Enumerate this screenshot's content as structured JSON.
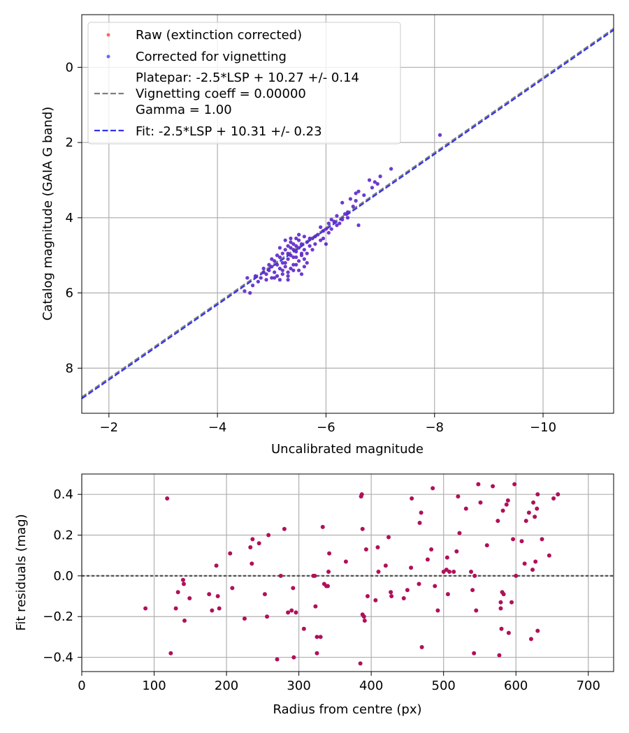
{
  "figure": {
    "top_plot": {
      "type": "scatter",
      "xlabel": "Uncalibrated magnitude",
      "ylabel": "Catalog magnitude (GAIA G band)",
      "xlim": [
        -1.5,
        -11.3
      ],
      "ylim": [
        9.2,
        -1.4
      ],
      "x_ticks": [
        -2,
        -4,
        -6,
        -8,
        -10
      ],
      "x_tick_labels": [
        "−2",
        "−4",
        "−6",
        "−8",
        "−10"
      ],
      "y_ticks": [
        0,
        2,
        4,
        6,
        8
      ],
      "y_tick_labels": [
        "0",
        "2",
        "4",
        "6",
        "8"
      ],
      "grid": true,
      "legend": {
        "position": "top-left",
        "entries": {
          "raw": "Raw (extinction corrected)",
          "corrected": "Corrected for vignetting",
          "platepar_line1": "Platepar: -2.5*LSP + 10.27 +/- 0.14",
          "platepar_line2": "Vignetting coeff = 0.00000",
          "platepar_line3": "Gamma = 1.00",
          "fit": "Fit: -2.5*LSP + 10.31 +/- 0.23"
        }
      },
      "series": [
        {
          "name": "Platepar",
          "kind": "dashed-line",
          "slope": 1.0,
          "intercept": 10.27,
          "color": "#7f7f7f"
        },
        {
          "name": "Fit",
          "kind": "dashed-line",
          "slope": 1.0,
          "intercept": 10.31,
          "color": "#3333ee"
        },
        {
          "name": "Raw (extinction corrected)",
          "kind": "points",
          "color": "#ff2a2a"
        },
        {
          "name": "Corrected for vignetting",
          "kind": "points",
          "color": "#2a2aff"
        }
      ],
      "points": [
        [
          -8.1,
          1.8
        ],
        [
          -7.2,
          2.7
        ],
        [
          -7.0,
          2.9
        ],
        [
          -6.95,
          3.1
        ],
        [
          -6.9,
          3.05
        ],
        [
          -6.8,
          3.0
        ],
        [
          -6.85,
          3.2
        ],
        [
          -6.6,
          3.3
        ],
        [
          -6.55,
          3.55
        ],
        [
          -6.45,
          3.5
        ],
        [
          -6.5,
          3.7
        ],
        [
          -6.3,
          3.6
        ],
        [
          -6.4,
          3.85
        ],
        [
          -6.35,
          3.9
        ],
        [
          -6.2,
          3.95
        ],
        [
          -6.3,
          4.05
        ],
        [
          -6.1,
          4.05
        ],
        [
          -6.15,
          4.1
        ],
        [
          -6.05,
          4.15
        ],
        [
          -6.2,
          4.2
        ],
        [
          -6.6,
          4.2
        ],
        [
          -5.9,
          4.25
        ],
        [
          -6.0,
          4.3
        ],
        [
          -5.95,
          4.35
        ],
        [
          -6.05,
          4.4
        ],
        [
          -5.85,
          4.45
        ],
        [
          -5.8,
          4.5
        ],
        [
          -5.75,
          4.55
        ],
        [
          -5.7,
          4.55
        ],
        [
          -5.9,
          4.6
        ],
        [
          -5.6,
          4.5
        ],
        [
          -5.5,
          4.45
        ],
        [
          -5.45,
          4.55
        ],
        [
          -5.65,
          4.65
        ],
        [
          -5.55,
          4.7
        ],
        [
          -5.4,
          4.7
        ],
        [
          -5.35,
          4.65
        ],
        [
          -5.3,
          4.75
        ],
        [
          -5.5,
          4.8
        ],
        [
          -5.6,
          4.85
        ],
        [
          -5.45,
          4.9
        ],
        [
          -5.25,
          4.85
        ],
        [
          -5.2,
          4.95
        ],
        [
          -5.35,
          5.0
        ],
        [
          -5.55,
          5.0
        ],
        [
          -5.4,
          5.05
        ],
        [
          -5.15,
          5.05
        ],
        [
          -5.3,
          5.1
        ],
        [
          -5.5,
          5.15
        ],
        [
          -5.05,
          5.15
        ],
        [
          -5.2,
          5.2
        ],
        [
          -5.4,
          5.25
        ],
        [
          -5.1,
          5.25
        ],
        [
          -5.25,
          5.3
        ],
        [
          -5.0,
          5.3
        ],
        [
          -5.35,
          5.35
        ],
        [
          -5.15,
          5.35
        ],
        [
          -4.95,
          5.4
        ],
        [
          -5.3,
          5.45
        ],
        [
          -5.05,
          5.45
        ],
        [
          -5.2,
          5.5
        ],
        [
          -4.9,
          5.5
        ],
        [
          -5.1,
          5.55
        ],
        [
          -5.3,
          5.55
        ],
        [
          -5.0,
          5.6
        ],
        [
          -4.85,
          5.45
        ],
        [
          -4.8,
          5.6
        ],
        [
          -5.15,
          5.65
        ],
        [
          -4.75,
          5.7
        ],
        [
          -4.7,
          5.55
        ],
        [
          -4.65,
          5.8
        ],
        [
          -4.55,
          5.6
        ],
        [
          -4.5,
          5.95
        ],
        [
          -4.6,
          6.0
        ],
        [
          -4.85,
          5.35
        ],
        [
          -5.45,
          5.25
        ],
        [
          -5.6,
          5.1
        ],
        [
          -5.65,
          4.95
        ],
        [
          -5.5,
          4.6
        ],
        [
          -5.35,
          4.55
        ],
        [
          -5.25,
          4.6
        ],
        [
          -5.45,
          4.75
        ],
        [
          -5.7,
          4.75
        ],
        [
          -5.55,
          4.95
        ],
        [
          -5.3,
          4.95
        ],
        [
          -5.1,
          5.0
        ],
        [
          -5.0,
          5.1
        ],
        [
          -5.2,
          5.4
        ],
        [
          -5.4,
          5.4
        ],
        [
          -5.05,
          5.6
        ],
        [
          -4.95,
          5.25
        ],
        [
          -5.6,
          5.3
        ],
        [
          -5.55,
          5.5
        ],
        [
          -5.75,
          4.85
        ],
        [
          -5.8,
          4.7
        ],
        [
          -5.95,
          4.55
        ],
        [
          -6.0,
          4.7
        ],
        [
          -6.1,
          4.3
        ],
        [
          -6.25,
          4.15
        ],
        [
          -6.4,
          4.0
        ],
        [
          -6.7,
          3.4
        ],
        [
          -6.55,
          3.35
        ],
        [
          -5.4,
          4.85
        ],
        [
          -5.25,
          5.2
        ],
        [
          -5.15,
          4.8
        ],
        [
          -5.5,
          5.4
        ],
        [
          -5.65,
          5.2
        ],
        [
          -4.9,
          5.65
        ],
        [
          -5.3,
          5.65
        ],
        [
          -5.45,
          5.05
        ],
        [
          -5.35,
          4.8
        ]
      ]
    },
    "bottom_plot": {
      "type": "scatter",
      "xlabel": "Radius from centre (px)",
      "ylabel": "Fit residuals (mag)",
      "xlim": [
        0,
        735
      ],
      "ylim": [
        -0.47,
        0.5
      ],
      "x_ticks": [
        0,
        100,
        200,
        300,
        400,
        500,
        600,
        700
      ],
      "x_tick_labels": [
        "0",
        "100",
        "200",
        "300",
        "400",
        "500",
        "600",
        "700"
      ],
      "y_ticks": [
        0.4,
        0.2,
        0.0,
        -0.2,
        -0.4
      ],
      "y_tick_labels": [
        "0.4",
        "0.2",
        "0.0",
        "−0.2",
        "−0.4"
      ],
      "grid": true,
      "reference_line": {
        "y": 0.0,
        "style": "dotted",
        "color": "#444444"
      },
      "point_color": "#b0105a",
      "points": [
        [
          88,
          -0.16
        ],
        [
          118,
          0.38
        ],
        [
          123,
          -0.38
        ],
        [
          130,
          -0.16
        ],
        [
          133,
          -0.08
        ],
        [
          140,
          -0.02
        ],
        [
          141,
          -0.04
        ],
        [
          142,
          -0.22
        ],
        [
          149,
          -0.11
        ],
        [
          176,
          -0.09
        ],
        [
          180,
          -0.17
        ],
        [
          186,
          0.05
        ],
        [
          188,
          -0.1
        ],
        [
          190,
          -0.16
        ],
        [
          205,
          0.11
        ],
        [
          208,
          -0.06
        ],
        [
          225,
          -0.21
        ],
        [
          233,
          0.14
        ],
        [
          235,
          0.06
        ],
        [
          236,
          0.18
        ],
        [
          245,
          0.16
        ],
        [
          253,
          -0.09
        ],
        [
          256,
          -0.2
        ],
        [
          258,
          0.2
        ],
        [
          270,
          -0.41
        ],
        [
          275,
          0.0
        ],
        [
          280,
          0.23
        ],
        [
          285,
          -0.18
        ],
        [
          290,
          -0.17
        ],
        [
          292,
          -0.06
        ],
        [
          293,
          -0.4
        ],
        [
          296,
          -0.18
        ],
        [
          307,
          -0.26
        ],
        [
          320,
          0.0
        ],
        [
          322,
          0.0
        ],
        [
          323,
          -0.15
        ],
        [
          325,
          -0.3
        ],
        [
          325,
          -0.38
        ],
        [
          330,
          -0.3
        ],
        [
          333,
          0.24
        ],
        [
          335,
          -0.04
        ],
        [
          338,
          -0.05
        ],
        [
          340,
          -0.05
        ],
        [
          341,
          0.02
        ],
        [
          342,
          0.11
        ],
        [
          365,
          0.07
        ],
        [
          385,
          -0.43
        ],
        [
          386,
          0.39
        ],
        [
          387,
          0.4
        ],
        [
          388,
          0.23
        ],
        [
          388,
          -0.19
        ],
        [
          390,
          -0.2
        ],
        [
          391,
          -0.22
        ],
        [
          393,
          0.13
        ],
        [
          395,
          -0.1
        ],
        [
          406,
          -0.12
        ],
        [
          409,
          0.14
        ],
        [
          410,
          0.02
        ],
        [
          420,
          0.05
        ],
        [
          424,
          0.19
        ],
        [
          427,
          -0.08
        ],
        [
          428,
          -0.1
        ],
        [
          445,
          -0.11
        ],
        [
          450,
          -0.07
        ],
        [
          455,
          0.04
        ],
        [
          456,
          0.38
        ],
        [
          466,
          -0.04
        ],
        [
          467,
          0.26
        ],
        [
          469,
          0.31
        ],
        [
          470,
          -0.35
        ],
        [
          478,
          0.08
        ],
        [
          483,
          0.13
        ],
        [
          485,
          0.43
        ],
        [
          488,
          -0.05
        ],
        [
          492,
          -0.17
        ],
        [
          500,
          0.02
        ],
        [
          504,
          0.03
        ],
        [
          505,
          0.09
        ],
        [
          506,
          -0.09
        ],
        [
          508,
          0.02
        ],
        [
          514,
          0.02
        ],
        [
          518,
          0.12
        ],
        [
          520,
          0.39
        ],
        [
          522,
          0.21
        ],
        [
          531,
          0.33
        ],
        [
          538,
          0.02
        ],
        [
          540,
          -0.07
        ],
        [
          542,
          -0.38
        ],
        [
          543,
          0.0
        ],
        [
          545,
          -0.17
        ],
        [
          548,
          0.45
        ],
        [
          551,
          0.36
        ],
        [
          560,
          0.15
        ],
        [
          568,
          0.44
        ],
        [
          575,
          0.27
        ],
        [
          577,
          -0.39
        ],
        [
          579,
          -0.13
        ],
        [
          579,
          -0.16
        ],
        [
          580,
          -0.26
        ],
        [
          581,
          -0.08
        ],
        [
          582,
          0.32
        ],
        [
          583,
          -0.09
        ],
        [
          587,
          0.35
        ],
        [
          589,
          0.37
        ],
        [
          590,
          -0.28
        ],
        [
          594,
          -0.13
        ],
        [
          596,
          0.18
        ],
        [
          598,
          0.45
        ],
        [
          600,
          0.0
        ],
        [
          608,
          0.17
        ],
        [
          612,
          0.06
        ],
        [
          614,
          0.27
        ],
        [
          618,
          0.31
        ],
        [
          621,
          -0.31
        ],
        [
          623,
          0.03
        ],
        [
          624,
          0.36
        ],
        [
          626,
          0.29
        ],
        [
          627,
          0.07
        ],
        [
          629,
          0.33
        ],
        [
          630,
          -0.27
        ],
        [
          630,
          0.4
        ],
        [
          636,
          0.18
        ],
        [
          646,
          0.1
        ],
        [
          652,
          0.38
        ],
        [
          658,
          0.4
        ]
      ]
    }
  }
}
